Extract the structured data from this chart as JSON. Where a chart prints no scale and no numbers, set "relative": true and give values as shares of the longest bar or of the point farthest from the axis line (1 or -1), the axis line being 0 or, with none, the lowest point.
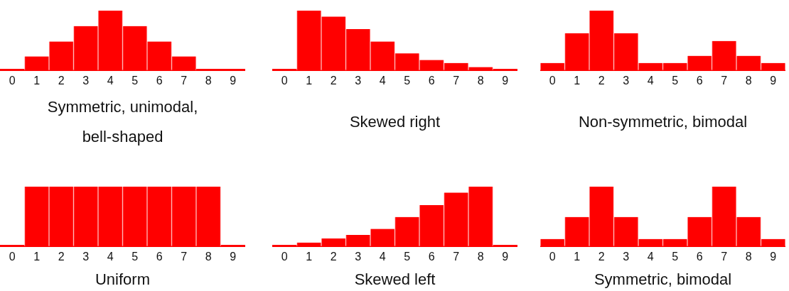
{
  "chart_data": [
    {
      "type": "bar",
      "relative": true,
      "categories": [
        "0",
        "1",
        "2",
        "3",
        "4",
        "5",
        "6",
        "7",
        "8",
        "9"
      ],
      "values": [
        0,
        0.23,
        0.48,
        0.74,
        1,
        0.74,
        0.48,
        0.23,
        0,
        0
      ],
      "color": "#ff0000",
      "xlabel": "Symmetric, unimodal, bell-shaped"
    },
    {
      "type": "bar",
      "relative": true,
      "categories": [
        "0",
        "1",
        "2",
        "3",
        "4",
        "5",
        "6",
        "7",
        "8",
        "9"
      ],
      "values": [
        0,
        1,
        0.9,
        0.69,
        0.48,
        0.28,
        0.17,
        0.12,
        0.05,
        0
      ],
      "color": "#ff0000",
      "xlabel": "Skewed right"
    },
    {
      "type": "bar",
      "relative": true,
      "categories": [
        "0",
        "1",
        "2",
        "3",
        "4",
        "5",
        "6",
        "7",
        "8",
        "9"
      ],
      "values": [
        0.12,
        0.62,
        1,
        0.62,
        0.12,
        0.12,
        0.24,
        0.49,
        0.24,
        0.12
      ],
      "color": "#ff0000",
      "xlabel": "Non-symmetric, bimodal"
    },
    {
      "type": "bar",
      "relative": true,
      "categories": [
        "0",
        "1",
        "2",
        "3",
        "4",
        "5",
        "6",
        "7",
        "8",
        "9"
      ],
      "values": [
        0,
        1,
        1,
        1,
        1,
        1,
        1,
        1,
        1,
        0
      ],
      "color": "#ff0000",
      "xlabel": "Uniform"
    },
    {
      "type": "bar",
      "relative": true,
      "categories": [
        "0",
        "1",
        "2",
        "3",
        "4",
        "5",
        "6",
        "7",
        "8",
        "9"
      ],
      "values": [
        0,
        0.06,
        0.13,
        0.19,
        0.29,
        0.49,
        0.69,
        0.9,
        1,
        0
      ],
      "color": "#ff0000",
      "xlabel": "Skewed left"
    },
    {
      "type": "bar",
      "relative": true,
      "categories": [
        "0",
        "1",
        "2",
        "3",
        "4",
        "5",
        "6",
        "7",
        "8",
        "9"
      ],
      "values": [
        0.12,
        0.49,
        1,
        0.49,
        0.12,
        0.12,
        0.49,
        1,
        0.49,
        0.12
      ],
      "color": "#ff0000",
      "xlabel": "Symmetric, bimodal"
    }
  ]
}
